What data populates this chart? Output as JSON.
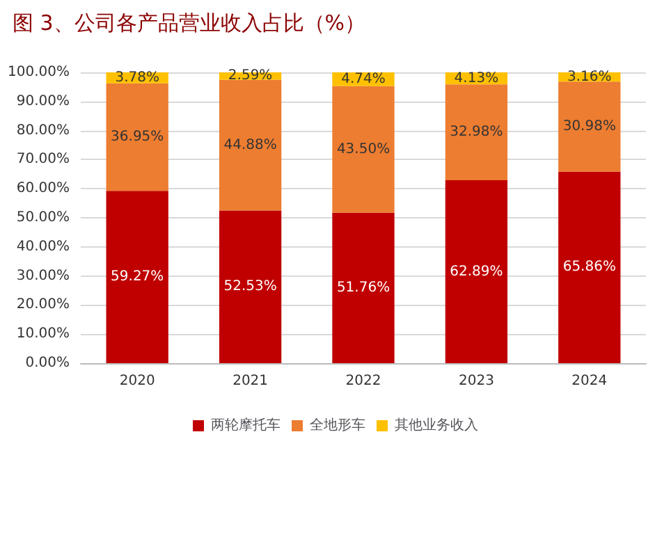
{
  "chart_data": {
    "type": "bar",
    "title": "图 3、公司各产品营业收入占比（%）",
    "categories": [
      "2020",
      "2021",
      "2022",
      "2023",
      "2024"
    ],
    "stacked": true,
    "series": [
      {
        "name": "两轮摩托车",
        "color": "#c00000",
        "values": [
          59.27,
          52.53,
          51.76,
          62.89,
          65.86
        ],
        "value_labels": [
          "59.27%",
          "52.53%",
          "51.76%",
          "62.89%",
          "65.86%"
        ]
      },
      {
        "name": "全地形车",
        "color": "#ed7d31",
        "values": [
          36.95,
          44.88,
          43.5,
          32.98,
          30.98
        ],
        "value_labels": [
          "36.95%",
          "44.88%",
          "43.50%",
          "32.98%",
          "30.98%"
        ]
      },
      {
        "name": "其他业务收入",
        "color": "#ffc000",
        "values": [
          3.78,
          2.59,
          4.74,
          4.13,
          3.16
        ],
        "value_labels": [
          "3.78%",
          "2.59%",
          "4.74%",
          "4.13%",
          "3.16%"
        ]
      }
    ],
    "ylim": [
      0,
      100
    ],
    "yticks": [
      {
        "value": 0,
        "label": "0.00%"
      },
      {
        "value": 10,
        "label": "10.00%"
      },
      {
        "value": 20,
        "label": "20.00%"
      },
      {
        "value": 30,
        "label": "30.00%"
      },
      {
        "value": 40,
        "label": "40.00%"
      },
      {
        "value": 50,
        "label": "50.00%"
      },
      {
        "value": 60,
        "label": "60.00%"
      },
      {
        "value": 70,
        "label": "70.00%"
      },
      {
        "value": 80,
        "label": "80.00%"
      },
      {
        "value": 90,
        "label": "90.00%"
      },
      {
        "value": 100,
        "label": "100.00%"
      }
    ],
    "grid": "y",
    "legend": "bottom"
  }
}
